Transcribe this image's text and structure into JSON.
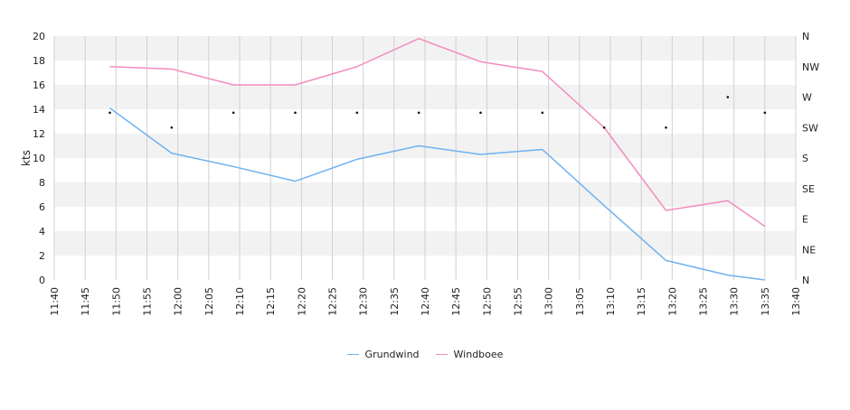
{
  "chart_data": {
    "type": "line",
    "ylabel": "kts",
    "ylim": [
      0,
      20
    ],
    "y_ticks": [
      "0",
      "2",
      "4",
      "6",
      "8",
      "10",
      "12",
      "14",
      "16",
      "18",
      "20"
    ],
    "x_range": [
      "11:40",
      "13:40"
    ],
    "x_ticks": [
      "11:40",
      "11:45",
      "11:50",
      "11:55",
      "12:00",
      "12:05",
      "12:10",
      "12:15",
      "12:20",
      "12:25",
      "12:30",
      "12:35",
      "12:40",
      "12:45",
      "12:50",
      "12:55",
      "13:00",
      "13:05",
      "13:10",
      "13:15",
      "13:20",
      "13:25",
      "13:30",
      "13:35",
      "13:40"
    ],
    "y2_ticks": [
      "N",
      "NE",
      "E",
      "SE",
      "S",
      "SW",
      "W",
      "NW",
      "N"
    ],
    "y2_range_degrees": [
      0,
      360
    ],
    "x": [
      "11:49",
      "11:59",
      "12:09",
      "12:19",
      "12:29",
      "12:39",
      "12:49",
      "12:59",
      "13:09",
      "13:19",
      "13:29",
      "13:35"
    ],
    "series": [
      {
        "name": "Grundwind",
        "color": "#6fb2f1",
        "values": [
          14.1,
          10.4,
          9.3,
          8.1,
          9.9,
          11.0,
          10.3,
          10.7,
          6.1,
          1.6,
          0.4,
          0.0
        ]
      },
      {
        "name": "Windboee",
        "color": "#f28cbf",
        "values": [
          17.5,
          17.3,
          16.0,
          16.0,
          17.5,
          19.8,
          17.9,
          17.1,
          12.5,
          5.7,
          6.5,
          4.4
        ]
      }
    ],
    "direction_x": [
      "11:49",
      "11:59",
      "12:09",
      "12:19",
      "12:29",
      "12:39",
      "12:49",
      "12:59",
      "13:09",
      "13:19",
      "13:29",
      "13:35"
    ],
    "direction_degrees": [
      247,
      225,
      247,
      247,
      247,
      247,
      247,
      247,
      225,
      225,
      270,
      247
    ],
    "grid": true,
    "legend_position": "bottom-center",
    "band_colors": [
      "#ffffff",
      "#f2f2f2"
    ]
  }
}
